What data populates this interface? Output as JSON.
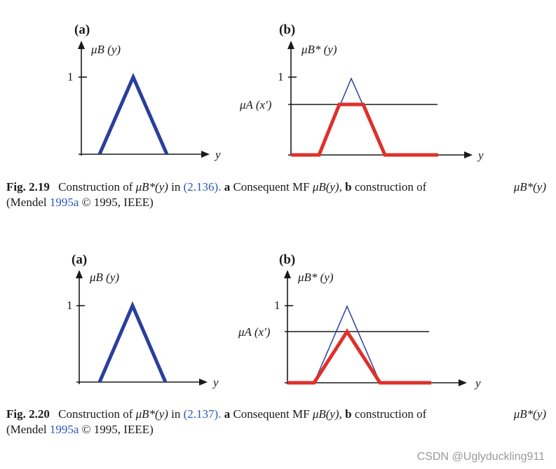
{
  "figures": [
    {
      "id": "2.19",
      "panel_a": {
        "label": "(a)",
        "y_axis": "μB (y)",
        "y_tick": "1",
        "x_axis": "y"
      },
      "panel_b": {
        "label": "(b)",
        "y_axis": "μB* (y)",
        "y_tick": "1",
        "h_label": "μA (x′)",
        "x_axis": "y"
      },
      "caption": {
        "number": "Fig. 2.19",
        "text1": "Construction of",
        "sym1": "μB*(y)",
        "text2": "in",
        "eq_ref": "(2.136).",
        "a": "a",
        "text3": "Consequent MF",
        "sym2": "μB(y),",
        "b": "b",
        "text4": "construction of",
        "sym3": "μB*(y)",
        "line2_pre": "(Mendel",
        "cite": "1995a",
        "line2_post": "© 1995, IEEE)"
      }
    },
    {
      "id": "2.20",
      "panel_a": {
        "label": "(a)",
        "y_axis": "μB (y)",
        "y_tick": "1",
        "x_axis": "y"
      },
      "panel_b": {
        "label": "(b)",
        "y_axis": "μB* (y)",
        "y_tick": "1",
        "h_label": "μA (x′)",
        "x_axis": "y"
      },
      "caption": {
        "number": "Fig. 2.20",
        "text1": "Construction of",
        "sym1": "μB*(y)",
        "text2": "in",
        "eq_ref": "(2.137).",
        "a": "a",
        "text3": "Consequent MF",
        "sym2": "μB(y),",
        "b": "b",
        "text4": "construction of",
        "sym3": "μB*(y)",
        "line2_pre": "(Mendel",
        "cite": "1995a",
        "line2_post": "© 1995, IEEE)"
      }
    }
  ],
  "watermark": "CSDN @Uglyduckling911",
  "colors": {
    "triangle": "#2a3f9c",
    "clipped": "#e0302a",
    "link": "#2a58b8"
  }
}
